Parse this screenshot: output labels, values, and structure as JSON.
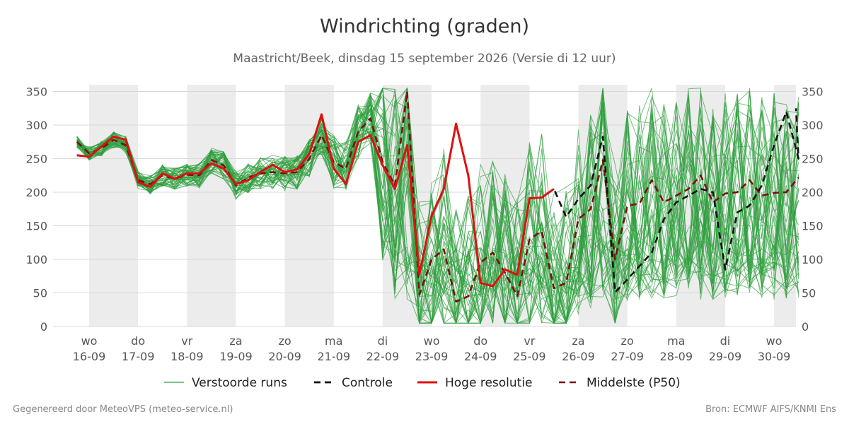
{
  "chart_data": {
    "type": "line",
    "title": "Windrichting (graden)",
    "subtitle": "Maastricht/Beek, dinsdag 15 september 2026 (Versie di 12 uur)",
    "ylim": [
      0,
      360
    ],
    "yticks": [
      0,
      50,
      100,
      150,
      200,
      250,
      300,
      350
    ],
    "x_start_day": 16,
    "days": [
      {
        "label": "wo",
        "date": "16-09"
      },
      {
        "label": "do",
        "date": "17-09"
      },
      {
        "label": "vr",
        "date": "18-09"
      },
      {
        "label": "za",
        "date": "19-09"
      },
      {
        "label": "zo",
        "date": "20-09"
      },
      {
        "label": "ma",
        "date": "21-09"
      },
      {
        "label": "di",
        "date": "22-09"
      },
      {
        "label": "wo",
        "date": "23-09"
      },
      {
        "label": "do",
        "date": "24-09"
      },
      {
        "label": "vr",
        "date": "25-09"
      },
      {
        "label": "za",
        "date": "26-09"
      },
      {
        "label": "zo",
        "date": "27-09"
      },
      {
        "label": "ma",
        "date": "28-09"
      },
      {
        "label": "di",
        "date": "29-09"
      },
      {
        "label": "wo",
        "date": "30-09"
      }
    ],
    "series": [
      {
        "name": "Controle",
        "color": "#111111",
        "style": "dashed",
        "x": [
          15.75,
          16.0,
          16.25,
          16.5,
          16.75,
          17.0,
          17.25,
          17.5,
          17.75,
          18.0,
          18.25,
          18.5,
          18.75,
          19.0,
          19.25,
          19.5,
          19.75,
          20.0,
          20.25,
          20.5,
          20.75,
          21.0,
          21.25,
          21.5,
          21.75,
          22.0,
          22.25,
          22.5,
          22.75,
          23.0,
          23.25,
          23.5,
          23.75,
          24.0,
          24.25,
          24.5,
          24.75,
          25.0,
          25.25,
          25.5,
          25.75,
          26.0,
          26.25,
          26.5,
          26.75,
          27.0,
          27.25,
          27.5,
          27.75,
          28.0,
          28.25,
          28.5,
          28.75,
          29.0,
          29.25,
          29.5,
          29.75,
          30.0,
          30.25,
          30.5
        ],
        "y": [
          255,
          253,
          268,
          283,
          278,
          215,
          208,
          228,
          220,
          228,
          228,
          243,
          235,
          212,
          218,
          230,
          241,
          230,
          234,
          257,
          316,
          235,
          212,
          275,
          285,
          240,
          205,
          270,
          78,
          165,
          205,
          302,
          225,
          65,
          60,
          85,
          77,
          191,
          192,
          205,
          163,
          190,
          210,
          283,
          51,
          70,
          90,
          110,
          160,
          185,
          195,
          205,
          200,
          85,
          170,
          180,
          210,
          270,
          320,
          250
        ],
        "y_tail": 325
      },
      {
        "name": "Hoge resolutie",
        "color": "#dd1111",
        "style": "solid",
        "x": [
          15.75,
          16.0,
          16.25,
          16.5,
          16.75,
          17.0,
          17.25,
          17.5,
          17.75,
          18.0,
          18.25,
          18.5,
          18.75,
          19.0,
          19.25,
          19.5,
          19.75,
          20.0,
          20.25,
          20.5,
          20.75,
          21.0,
          21.25,
          21.5,
          21.75,
          22.0,
          22.25,
          22.5,
          22.75,
          23.0,
          23.25,
          23.5,
          23.75,
          24.0,
          24.25,
          24.5,
          24.75,
          25.0,
          25.25,
          25.5
        ],
        "y": [
          255,
          253,
          268,
          283,
          278,
          215,
          208,
          228,
          220,
          228,
          228,
          243,
          235,
          212,
          218,
          230,
          241,
          230,
          234,
          257,
          316,
          235,
          212,
          275,
          285,
          240,
          205,
          270,
          78,
          165,
          205,
          302,
          225,
          65,
          60,
          85,
          77,
          191,
          192,
          205
        ]
      },
      {
        "name": "Middelste (P50)",
        "color": "#7a1010",
        "style": "dashed",
        "x": [
          15.75,
          16.0,
          16.25,
          16.5,
          16.75,
          17.0,
          17.25,
          17.5,
          17.75,
          18.0,
          18.25,
          18.5,
          18.75,
          19.0,
          19.25,
          19.5,
          19.75,
          20.0,
          20.25,
          20.5,
          20.75,
          21.0,
          21.25,
          21.5,
          21.75,
          22.0,
          22.25,
          22.5,
          22.75,
          23.0,
          23.25,
          23.5,
          23.75,
          24.0,
          24.25,
          24.5,
          24.75,
          25.0,
          25.25,
          25.5,
          25.75,
          26.0,
          26.25,
          26.5,
          26.75,
          27.0,
          27.25,
          27.5,
          27.75,
          28.0,
          28.25,
          28.5,
          28.75,
          29.0,
          29.25,
          29.5,
          29.75,
          30.0,
          30.25,
          30.5
        ],
        "y": [
          275,
          258,
          265,
          278,
          270,
          218,
          212,
          225,
          220,
          226,
          225,
          248,
          240,
          210,
          222,
          228,
          230,
          228,
          230,
          250,
          285,
          245,
          235,
          290,
          310,
          245,
          210,
          350,
          48,
          100,
          115,
          37,
          45,
          95,
          110,
          80,
          45,
          130,
          142,
          57,
          65,
          160,
          175,
          248,
          100,
          180,
          183,
          218,
          185,
          195,
          205,
          225,
          185,
          198,
          200,
          218,
          195,
          199,
          200,
          222
        ]
      }
    ],
    "ensemble_name": "Verstoorde runs",
    "ensemble_color": "#2e9e3e"
  },
  "legend": [
    {
      "name": "Verstoorde runs"
    },
    {
      "name": "Controle"
    },
    {
      "name": "Hoge resolutie"
    },
    {
      "name": "Middelste (P50)"
    }
  ],
  "footer": {
    "left": "Gegenereerd door MeteoVPS (meteo-service.nl)",
    "right": "Bron: ECMWF AIFS/KNMI Ens"
  }
}
